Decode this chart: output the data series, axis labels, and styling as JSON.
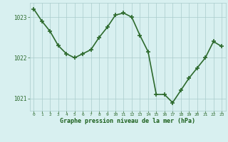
{
  "x": [
    0,
    1,
    2,
    3,
    4,
    5,
    6,
    7,
    8,
    9,
    10,
    11,
    12,
    13,
    14,
    15,
    16,
    17,
    18,
    19,
    20,
    21,
    22,
    23
  ],
  "y": [
    1023.2,
    1022.9,
    1022.65,
    1022.3,
    1022.1,
    1022.0,
    1022.1,
    1022.2,
    1022.5,
    1022.75,
    1023.05,
    1023.1,
    1023.0,
    1022.55,
    1022.15,
    1021.1,
    1021.1,
    1020.9,
    1021.2,
    1021.5,
    1021.75,
    1022.0,
    1022.4,
    1022.28
  ],
  "line_color": "#2d6a2d",
  "marker": "+",
  "marker_size": 4,
  "marker_lw": 1.2,
  "line_width": 1.2,
  "bg_color": "#d8f0f0",
  "grid_color": "#aacccc",
  "xlabel": "Graphe pression niveau de la mer (hPa)",
  "xlabel_color": "#1a5e1a",
  "tick_color": "#2d6a2d",
  "ylim": [
    1020.7,
    1023.35
  ],
  "yticks": [
    1021,
    1022,
    1023
  ],
  "xlim": [
    -0.5,
    23.5
  ],
  "xticks": [
    0,
    1,
    2,
    3,
    4,
    5,
    6,
    7,
    8,
    9,
    10,
    11,
    12,
    13,
    14,
    15,
    16,
    17,
    18,
    19,
    20,
    21,
    22,
    23
  ],
  "figure_width": 3.2,
  "figure_height": 2.0,
  "dpi": 100
}
